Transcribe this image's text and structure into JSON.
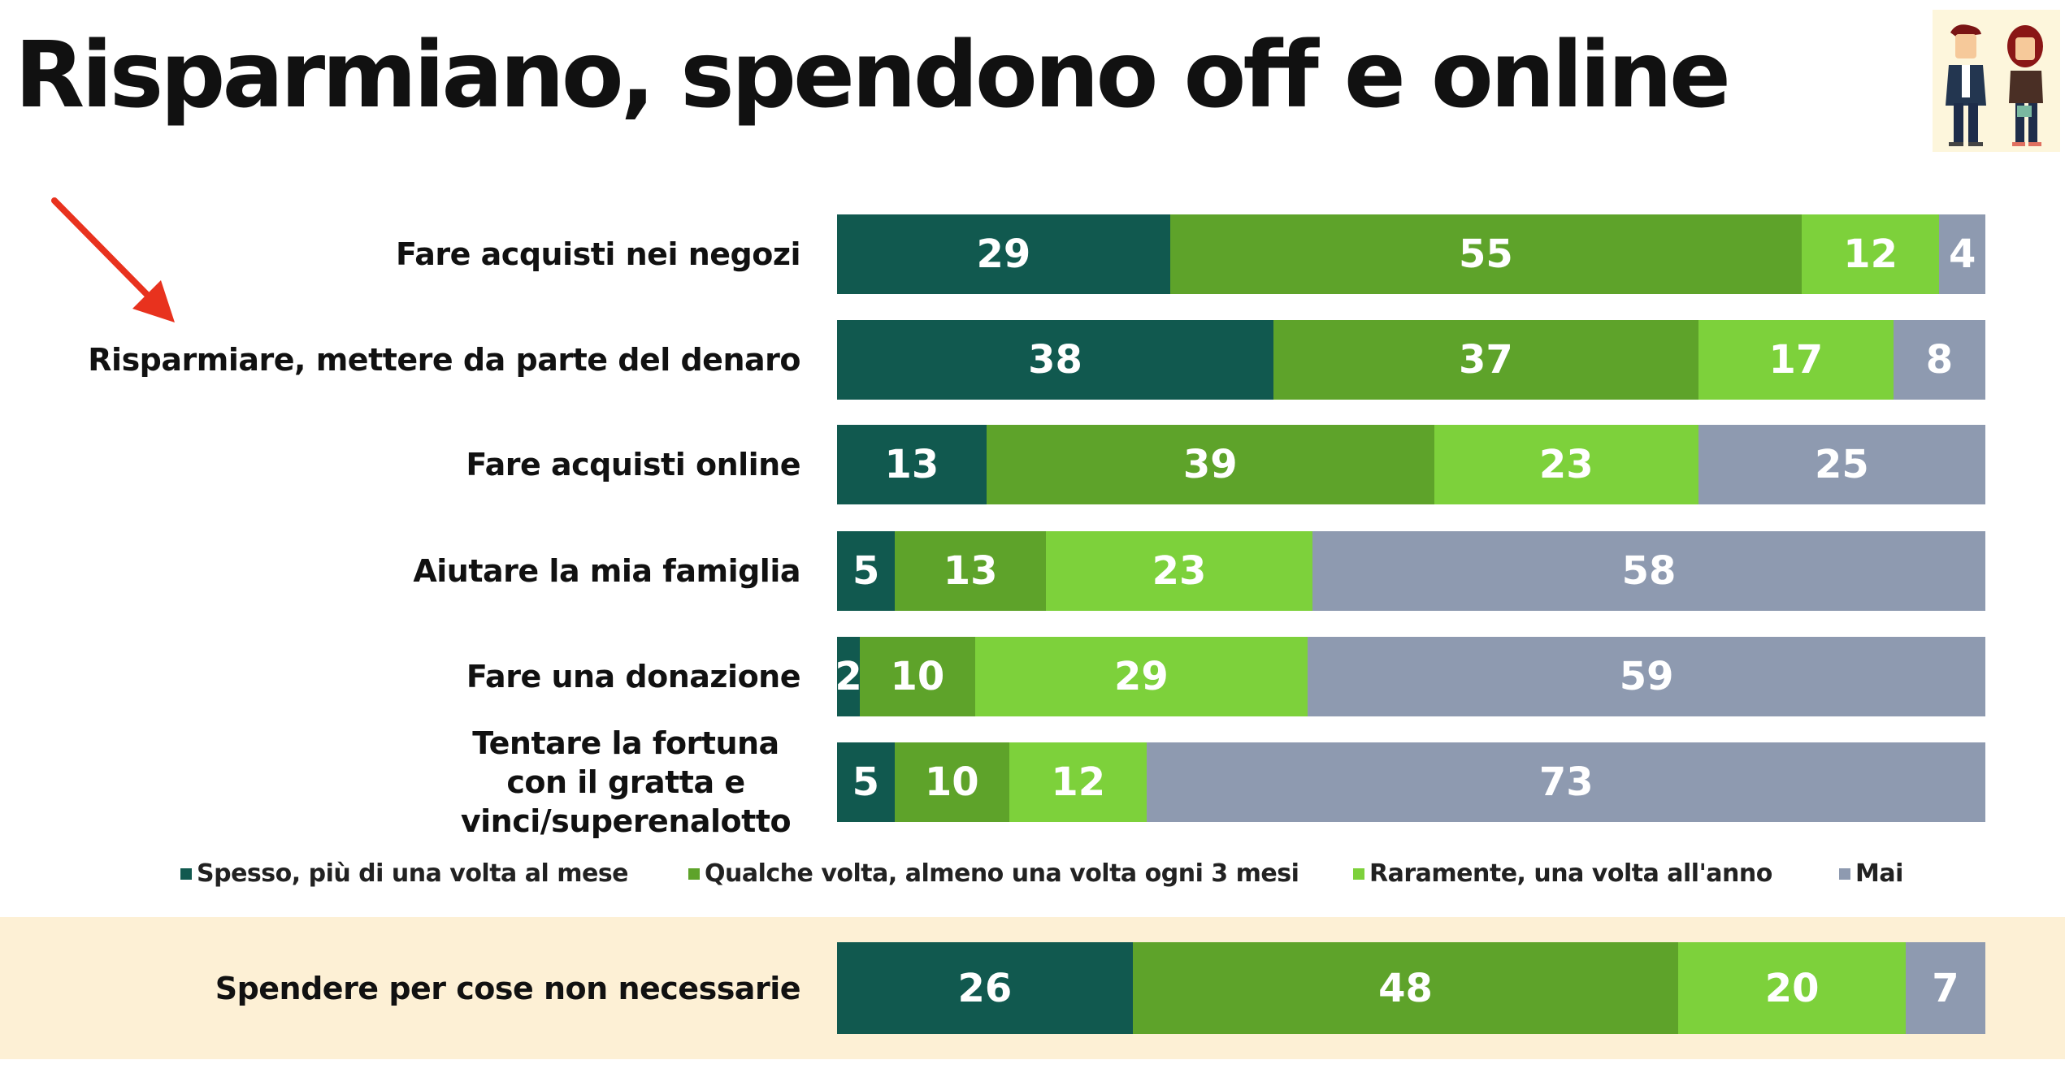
{
  "title": "Risparmiano, spendono off e online",
  "colors": {
    "spesso": "#11594f",
    "qualche": "#5ea32a",
    "raramente": "#7dd13b",
    "mai": "#8e9ab0",
    "band": "#fdf0d5",
    "arrow": "#e8321e"
  },
  "chart_data": {
    "type": "bar",
    "orientation": "horizontal-stacked-100",
    "title": "Risparmiano, spendono off e online",
    "categories": [
      "Fare acquisti nei negozi",
      "Risparmiare, mettere da parte del denaro",
      "Fare acquisti online",
      "Aiutare la mia famiglia",
      "Fare una donazione",
      "Tentare la fortuna con il gratta e vinci/superenalotto"
    ],
    "series": [
      {
        "name": "Spesso, più di una volta al mese",
        "color": "#11594f",
        "values": [
          29,
          38,
          13,
          5,
          2,
          5
        ]
      },
      {
        "name": "Qualche volta, almeno una volta ogni 3 mesi",
        "color": "#5ea32a",
        "values": [
          55,
          37,
          39,
          13,
          10,
          10
        ]
      },
      {
        "name": "Raramente, una volta all'anno",
        "color": "#7dd13b",
        "values": [
          12,
          17,
          23,
          23,
          29,
          12
        ]
      },
      {
        "name": "Mai",
        "color": "#8e9ab0",
        "values": [
          4,
          8,
          25,
          58,
          59,
          73
        ]
      }
    ],
    "highlighted": {
      "category": "Spendere per cose non necessarie",
      "values": [
        26,
        48,
        20,
        7
      ]
    },
    "legend_position": "bottom",
    "grid": false
  }
}
